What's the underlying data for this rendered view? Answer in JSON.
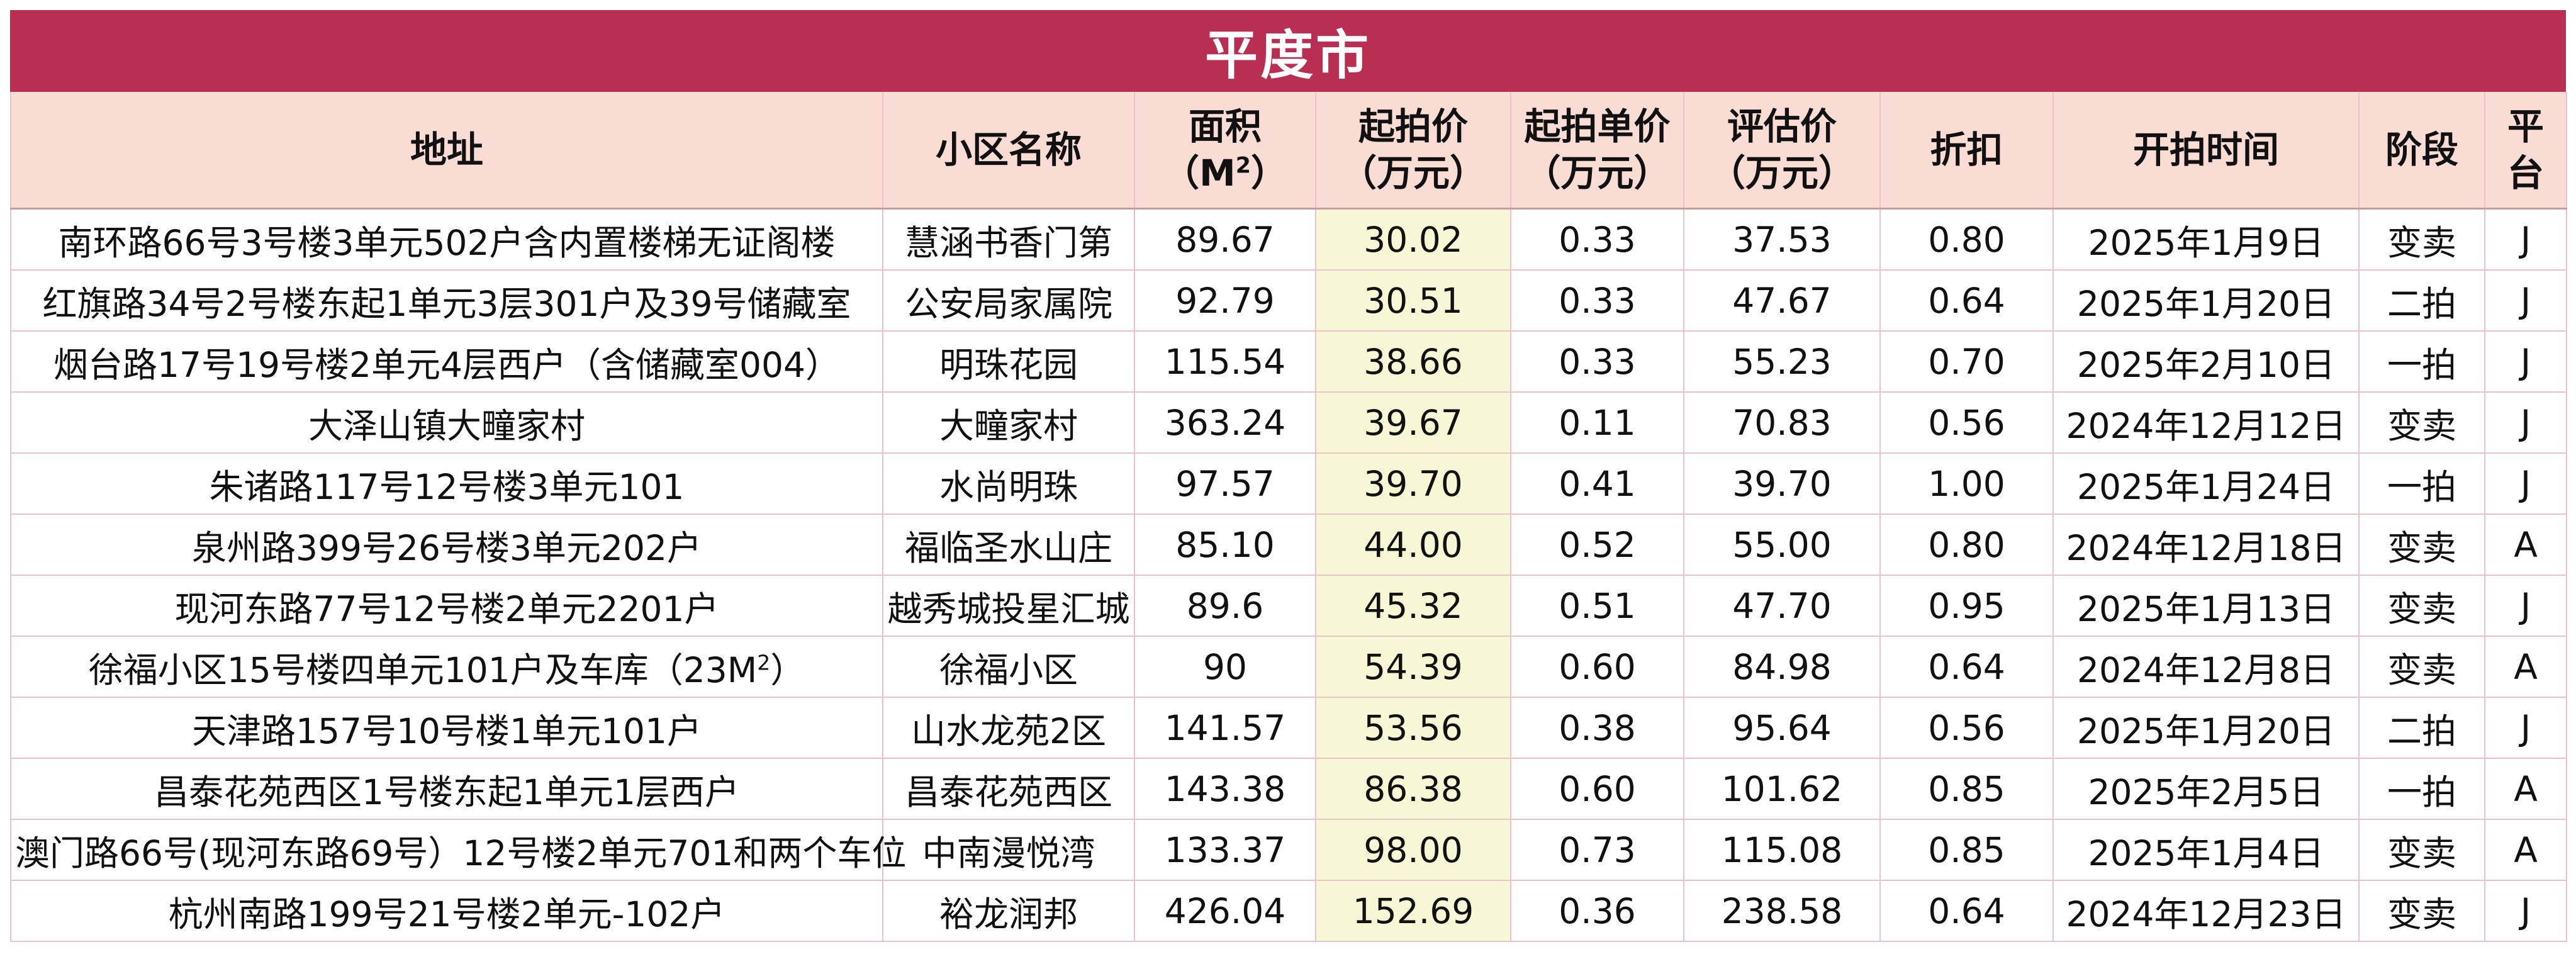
{
  "title": "平度市",
  "headers": {
    "address": "地址",
    "community": "小区名称",
    "area_line1": "面积",
    "area_line2_prefix": "（M",
    "area_sup": "2",
    "area_line2_suffix": "）",
    "start_price_line1": "起拍价",
    "start_price_line2": "（万元）",
    "unit_price_line1": "起拍单价",
    "unit_price_line2": "（万元）",
    "assessed_line1": "评估价",
    "assessed_line2": "（万元）",
    "discount": "折扣",
    "start_time": "开拍时间",
    "stage": "阶段",
    "platform_line1": "平",
    "platform_line2": "台"
  },
  "rows": [
    {
      "address": "南环路66号3号楼3单元502户含内置楼梯无证阁楼",
      "community": "慧涵书香门第",
      "area": "89.67",
      "start_price": "30.02",
      "unit_price": "0.33",
      "assessed": "37.53",
      "discount": "0.80",
      "start_time": "2025年1月9日",
      "stage": "变卖",
      "platform": "J"
    },
    {
      "address": "红旗路34号2号楼东起1单元3层301户及39号储藏室",
      "community": "公安局家属院",
      "area": "92.79",
      "start_price": "30.51",
      "unit_price": "0.33",
      "assessed": "47.67",
      "discount": "0.64",
      "start_time": "2025年1月20日",
      "stage": "二拍",
      "platform": "J"
    },
    {
      "address": "烟台路17号19号楼2单元4层西户（含储藏室004）",
      "community": "明珠花园",
      "area": "115.54",
      "start_price": "38.66",
      "unit_price": "0.33",
      "assessed": "55.23",
      "discount": "0.70",
      "start_time": "2025年2月10日",
      "stage": "一拍",
      "platform": "J"
    },
    {
      "address": "大泽山镇大疃家村",
      "community": "大疃家村",
      "area": "363.24",
      "start_price": "39.67",
      "unit_price": "0.11",
      "assessed": "70.83",
      "discount": "0.56",
      "start_time": "2024年12月12日",
      "stage": "变卖",
      "platform": "J"
    },
    {
      "address": "朱诸路117号12号楼3单元101",
      "community": "水尚明珠",
      "area": "97.57",
      "start_price": "39.70",
      "unit_price": "0.41",
      "assessed": "39.70",
      "discount": "1.00",
      "start_time": "2025年1月24日",
      "stage": "一拍",
      "platform": "J"
    },
    {
      "address": "泉州路399号26号楼3单元202户",
      "community": "福临圣水山庄",
      "area": "85.10",
      "start_price": "44.00",
      "unit_price": "0.52",
      "assessed": "55.00",
      "discount": "0.80",
      "start_time": "2024年12月18日",
      "stage": "变卖",
      "platform": "A"
    },
    {
      "address": "现河东路77号12号楼2单元2201户",
      "community": "越秀城投星汇城",
      "area": "89.6",
      "start_price": "45.32",
      "unit_price": "0.51",
      "assessed": "47.70",
      "discount": "0.95",
      "start_time": "2025年1月13日",
      "stage": "变卖",
      "platform": "J"
    },
    {
      "address_prefix": "徐福小区15号楼四单元101户及车库（23M",
      "address_sup": "2",
      "address_suffix": "）",
      "community": "徐福小区",
      "area": "90",
      "start_price": "54.39",
      "unit_price": "0.60",
      "assessed": "84.98",
      "discount": "0.64",
      "start_time": "2024年12月8日",
      "stage": "变卖",
      "platform": "A"
    },
    {
      "address": "天津路157号10号楼1单元101户",
      "community": "山水龙苑2区",
      "area": "141.57",
      "start_price": "53.56",
      "unit_price": "0.38",
      "assessed": "95.64",
      "discount": "0.56",
      "start_time": "2025年1月20日",
      "stage": "二拍",
      "platform": "J"
    },
    {
      "address": "昌泰花苑西区1号楼东起1单元1层西户",
      "community": "昌泰花苑西区",
      "area": "143.38",
      "start_price": "86.38",
      "unit_price": "0.60",
      "assessed": "101.62",
      "discount": "0.85",
      "start_time": "2025年2月5日",
      "stage": "一拍",
      "platform": "A"
    },
    {
      "address": "澳门路66号(现河东路69号）12号楼2单元701和两个车位",
      "community": "中南漫悦湾",
      "area": "133.37",
      "start_price": "98.00",
      "unit_price": "0.73",
      "assessed": "115.08",
      "discount": "0.85",
      "start_time": "2025年1月4日",
      "stage": "变卖",
      "platform": "A"
    },
    {
      "address": "杭州南路199号21号楼2单元-102户",
      "community": "裕龙润邦",
      "area": "426.04",
      "start_price": "152.69",
      "unit_price": "0.36",
      "assessed": "238.58",
      "discount": "0.64",
      "start_time": "2024年12月23日",
      "stage": "变卖",
      "platform": "J"
    }
  ]
}
